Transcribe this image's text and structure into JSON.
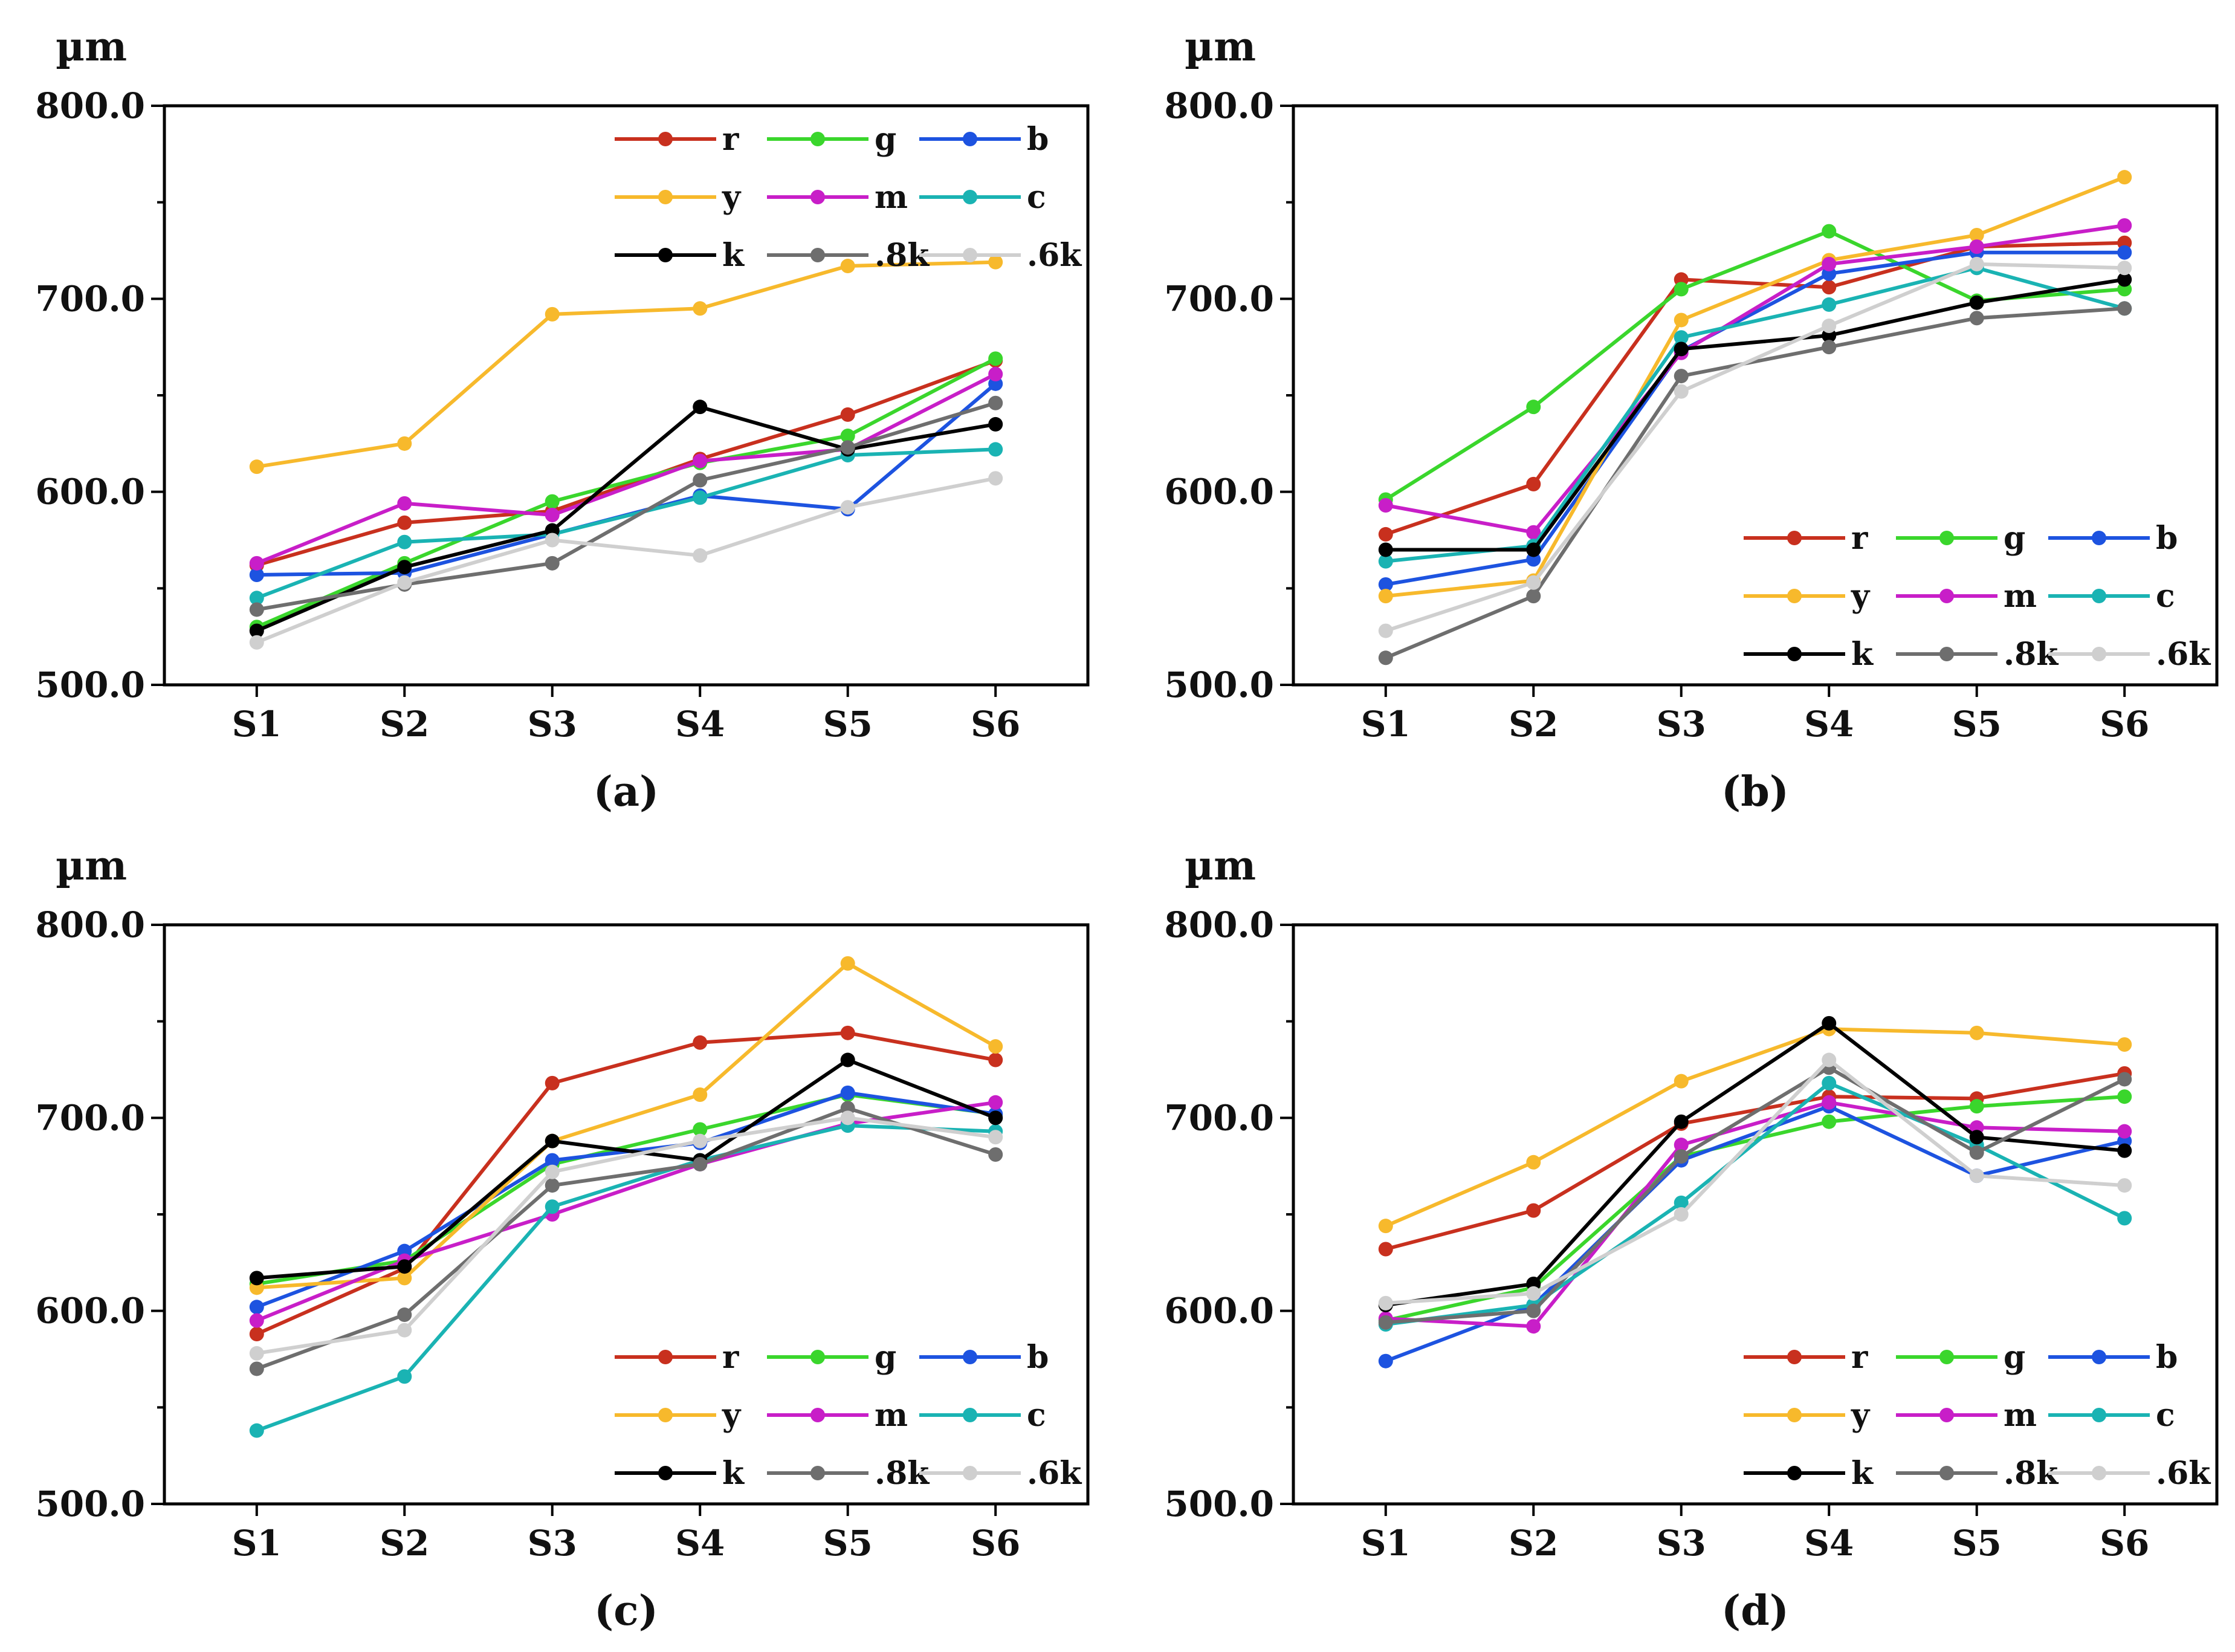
{
  "colors": {
    "r": "#c8301e",
    "g": "#3ad62c",
    "b": "#1d53e0",
    "y": "#f7b92c",
    "m": "#c81ec8",
    "c": "#1ab3b3",
    "k": "#000000",
    "8k": "#6e6e6e",
    "6k": "#cfcfcf"
  },
  "chart_data": [
    {
      "type": "line",
      "caption": "(a)",
      "ylabel": "µm",
      "ylim": [
        500,
        800
      ],
      "yticks": [
        "500.0",
        "600.0",
        "700.0",
        "800.0"
      ],
      "categories": [
        "S1",
        "S2",
        "S3",
        "S4",
        "S5",
        "S6"
      ],
      "legend_position": "top-right",
      "series": [
        {
          "name": "r",
          "values": [
            562,
            584,
            590,
            617,
            640,
            668
          ]
        },
        {
          "name": "g",
          "values": [
            530,
            563,
            595,
            615,
            629,
            669
          ]
        },
        {
          "name": "b",
          "values": [
            557,
            558,
            578,
            598,
            591,
            656
          ]
        },
        {
          "name": "y",
          "values": [
            613,
            625,
            692,
            695,
            717,
            719
          ]
        },
        {
          "name": "m",
          "values": [
            563,
            594,
            588,
            616,
            622,
            661
          ]
        },
        {
          "name": "c",
          "values": [
            545,
            574,
            578,
            597,
            619,
            622
          ]
        },
        {
          "name": "k",
          "values": [
            528,
            561,
            580,
            644,
            622,
            635
          ]
        },
        {
          "name": ".8k",
          "values": [
            539,
            552,
            563,
            606,
            623,
            646
          ]
        },
        {
          "name": ".6k",
          "values": [
            522,
            553,
            575,
            567,
            592,
            607
          ]
        }
      ]
    },
    {
      "type": "line",
      "caption": "(b)",
      "ylabel": "µm",
      "ylim": [
        500,
        800
      ],
      "yticks": [
        "500.0",
        "600.0",
        "700.0",
        "800.0"
      ],
      "categories": [
        "S1",
        "S2",
        "S3",
        "S4",
        "S5",
        "S6"
      ],
      "legend_position": "bottom-right",
      "series": [
        {
          "name": "r",
          "values": [
            578,
            604,
            710,
            706,
            727,
            729
          ]
        },
        {
          "name": "g",
          "values": [
            596,
            644,
            705,
            735,
            699,
            705
          ]
        },
        {
          "name": "b",
          "values": [
            552,
            565,
            673,
            713,
            724,
            724
          ]
        },
        {
          "name": "y",
          "values": [
            546,
            554,
            689,
            720,
            733,
            763
          ]
        },
        {
          "name": "m",
          "values": [
            593,
            579,
            672,
            718,
            727,
            738
          ]
        },
        {
          "name": "c",
          "values": [
            564,
            572,
            680,
            697,
            716,
            695
          ]
        },
        {
          "name": "k",
          "values": [
            570,
            570,
            674,
            681,
            698,
            710
          ]
        },
        {
          "name": ".8k",
          "values": [
            514,
            546,
            660,
            675,
            690,
            695
          ]
        },
        {
          "name": ".6k",
          "values": [
            528,
            553,
            652,
            686,
            718,
            716
          ]
        }
      ]
    },
    {
      "type": "line",
      "caption": "(c)",
      "ylabel": "µm",
      "ylim": [
        500,
        800
      ],
      "yticks": [
        "500.0",
        "600.0",
        "700.0",
        "800.0"
      ],
      "categories": [
        "S1",
        "S2",
        "S3",
        "S4",
        "S5",
        "S6"
      ],
      "legend_position": "bottom-right",
      "series": [
        {
          "name": "r",
          "values": [
            588,
            622,
            718,
            739,
            744,
            730
          ]
        },
        {
          "name": "g",
          "values": [
            614,
            626,
            676,
            694,
            712,
            702
          ]
        },
        {
          "name": "b",
          "values": [
            602,
            631,
            678,
            687,
            713,
            702
          ]
        },
        {
          "name": "y",
          "values": [
            612,
            617,
            688,
            712,
            780,
            737
          ]
        },
        {
          "name": "m",
          "values": [
            595,
            626,
            650,
            676,
            697,
            708
          ]
        },
        {
          "name": "c",
          "values": [
            538,
            566,
            654,
            678,
            696,
            693
          ]
        },
        {
          "name": "k",
          "values": [
            617,
            623,
            688,
            678,
            730,
            700
          ]
        },
        {
          "name": ".8k",
          "values": [
            570,
            598,
            665,
            676,
            705,
            681
          ]
        },
        {
          "name": ".6k",
          "values": [
            578,
            590,
            672,
            688,
            700,
            690
          ]
        }
      ]
    },
    {
      "type": "line",
      "caption": "(d)",
      "ylabel": "µm",
      "ylim": [
        500,
        800
      ],
      "yticks": [
        "500.0",
        "600.0",
        "700.0",
        "800.0"
      ],
      "categories": [
        "S1",
        "S2",
        "S3",
        "S4",
        "S5",
        "S6"
      ],
      "legend_position": "bottom-right",
      "series": [
        {
          "name": "r",
          "values": [
            632,
            652,
            697,
            711,
            710,
            723
          ]
        },
        {
          "name": "g",
          "values": [
            595,
            612,
            680,
            698,
            706,
            711
          ]
        },
        {
          "name": "b",
          "values": [
            574,
            603,
            678,
            706,
            670,
            688
          ]
        },
        {
          "name": "y",
          "values": [
            644,
            677,
            719,
            746,
            744,
            738
          ]
        },
        {
          "name": "m",
          "values": [
            596,
            592,
            686,
            708,
            695,
            693
          ]
        },
        {
          "name": "c",
          "values": [
            593,
            603,
            656,
            718,
            686,
            648
          ]
        },
        {
          "name": "k",
          "values": [
            603,
            614,
            698,
            749,
            690,
            683
          ]
        },
        {
          "name": ".8k",
          "values": [
            594,
            600,
            680,
            726,
            682,
            720
          ]
        },
        {
          "name": ".6k",
          "values": [
            604,
            609,
            650,
            730,
            670,
            665
          ]
        }
      ]
    }
  ]
}
